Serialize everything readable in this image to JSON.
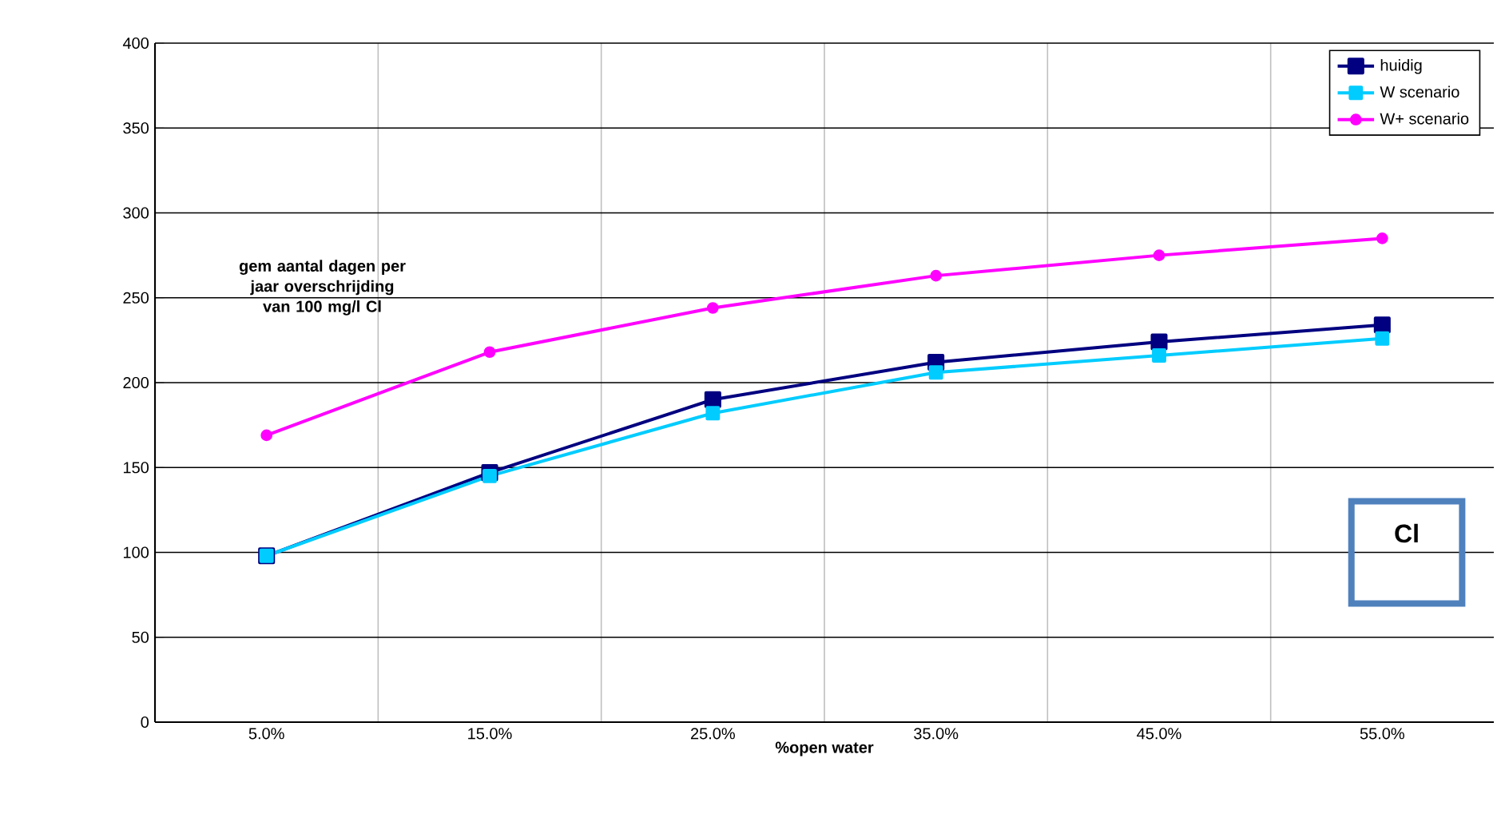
{
  "chart_data": {
    "type": "line",
    "xlabel": "%open water",
    "categories": [
      "5.0%",
      "15.0%",
      "25.0%",
      "35.0%",
      "45.0%",
      "55.0%"
    ],
    "series": [
      {
        "name": "huidig",
        "color": "#000080",
        "marker": "square",
        "values": [
          98,
          147,
          190,
          212,
          224,
          234
        ]
      },
      {
        "name": "W scenario",
        "color": "#00ccff",
        "marker": "square",
        "values": [
          98,
          145,
          182,
          206,
          216,
          226
        ]
      },
      {
        "name": "W+ scenario",
        "color": "#ff00ff",
        "marker": "circle",
        "values": [
          169,
          218,
          244,
          263,
          275,
          285
        ]
      }
    ],
    "ylim": [
      0,
      400
    ],
    "yticks": [
      0,
      50,
      100,
      150,
      200,
      250,
      300,
      350,
      400
    ],
    "grid": true,
    "legend": "top right",
    "line_style": "solid",
    "annotations": [
      "gem aantal dagen per jaar overschrijding van 100 mg/l Cl",
      "Cl"
    ]
  }
}
